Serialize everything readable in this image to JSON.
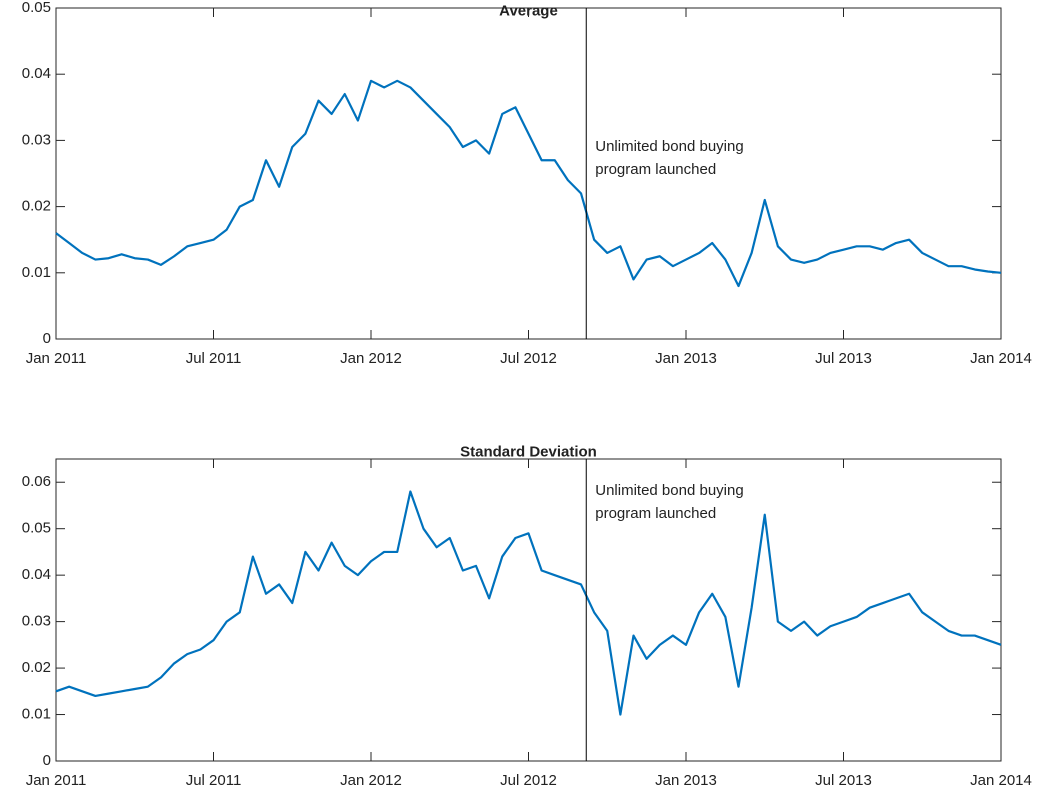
{
  "chart_data": [
    {
      "type": "line",
      "title": "Average",
      "color": "#0072bd",
      "x": [
        0,
        0.5,
        1,
        1.5,
        2,
        2.5,
        3,
        3.5,
        4,
        4.5,
        5,
        5.5,
        6,
        6.5,
        7,
        7.5,
        8,
        8.5,
        9,
        9.5,
        10,
        10.5,
        11,
        11.5,
        12,
        12.5,
        13,
        13.5,
        14,
        14.5,
        15,
        15.5,
        16,
        16.5,
        17,
        17.5,
        18,
        18.5,
        19,
        19.5,
        20,
        20.5,
        21,
        21.5,
        22,
        22.5,
        23,
        23.5,
        24,
        24.5,
        25,
        25.5,
        26,
        26.5,
        27,
        27.5,
        28,
        28.5,
        29,
        29.5,
        30,
        30.5,
        31,
        31.5,
        32,
        32.5,
        33,
        33.5,
        34,
        34.5,
        35,
        35.5,
        36
      ],
      "values": [
        0.016,
        0.0145,
        0.013,
        0.012,
        0.0122,
        0.0128,
        0.0122,
        0.012,
        0.0112,
        0.0125,
        0.014,
        0.0145,
        0.015,
        0.0165,
        0.02,
        0.021,
        0.027,
        0.023,
        0.029,
        0.031,
        0.036,
        0.034,
        0.037,
        0.033,
        0.039,
        0.038,
        0.039,
        0.038,
        0.036,
        0.034,
        0.032,
        0.029,
        0.03,
        0.028,
        0.034,
        0.035,
        0.031,
        0.027,
        0.027,
        0.024,
        0.022,
        0.015,
        0.013,
        0.014,
        0.009,
        0.012,
        0.0125,
        0.011,
        0.012,
        0.013,
        0.0145,
        0.012,
        0.008,
        0.013,
        0.021,
        0.014,
        0.012,
        0.0115,
        0.012,
        0.013,
        0.0135,
        0.014,
        0.014,
        0.0135,
        0.0145,
        0.015,
        0.013,
        0.012,
        0.011,
        0.011,
        0.0105,
        0.0102,
        0.01
      ],
      "xlim": [
        0,
        36
      ],
      "xticks": [
        {
          "value": 0,
          "label": "Jan 2011"
        },
        {
          "value": 6,
          "label": "Jul 2011"
        },
        {
          "value": 12,
          "label": "Jan 2012"
        },
        {
          "value": 18,
          "label": "Jul 2012"
        },
        {
          "value": 24,
          "label": "Jan 2013"
        },
        {
          "value": 30,
          "label": "Jul 2013"
        },
        {
          "value": 36,
          "label": "Jan 2014"
        }
      ],
      "ylim": [
        0,
        0.05
      ],
      "yticks": [
        0,
        0.01,
        0.02,
        0.03,
        0.04,
        0.05
      ],
      "vline": {
        "x": 20.2
      },
      "annotation": [
        "Unlimited bond buying",
        "program launched"
      ]
    },
    {
      "type": "line",
      "title": "Standard Deviation",
      "color": "#0072bd",
      "x": [
        0,
        0.5,
        1,
        1.5,
        2,
        2.5,
        3,
        3.5,
        4,
        4.5,
        5,
        5.5,
        6,
        6.5,
        7,
        7.5,
        8,
        8.5,
        9,
        9.5,
        10,
        10.5,
        11,
        11.5,
        12,
        12.5,
        13,
        13.5,
        14,
        14.5,
        15,
        15.5,
        16,
        16.5,
        17,
        17.5,
        18,
        18.5,
        19,
        19.5,
        20,
        20.5,
        21,
        21.5,
        22,
        22.5,
        23,
        23.5,
        24,
        24.5,
        25,
        25.5,
        26,
        26.5,
        27,
        27.5,
        28,
        28.5,
        29,
        29.5,
        30,
        30.5,
        31,
        31.5,
        32,
        32.5,
        33,
        33.5,
        34,
        34.5,
        35,
        35.5,
        36
      ],
      "values": [
        0.015,
        0.016,
        0.015,
        0.014,
        0.0145,
        0.015,
        0.0155,
        0.016,
        0.018,
        0.021,
        0.023,
        0.024,
        0.026,
        0.03,
        0.032,
        0.044,
        0.036,
        0.038,
        0.034,
        0.045,
        0.041,
        0.047,
        0.042,
        0.04,
        0.043,
        0.045,
        0.045,
        0.058,
        0.05,
        0.046,
        0.048,
        0.041,
        0.042,
        0.035,
        0.044,
        0.048,
        0.049,
        0.041,
        0.04,
        0.039,
        0.038,
        0.032,
        0.028,
        0.01,
        0.027,
        0.022,
        0.025,
        0.027,
        0.025,
        0.032,
        0.036,
        0.031,
        0.016,
        0.033,
        0.053,
        0.03,
        0.028,
        0.03,
        0.027,
        0.029,
        0.03,
        0.031,
        0.033,
        0.034,
        0.035,
        0.036,
        0.032,
        0.03,
        0.028,
        0.027,
        0.027,
        0.026,
        0.025
      ],
      "xlim": [
        0,
        36
      ],
      "xticks": [
        {
          "value": 0,
          "label": "Jan 2011"
        },
        {
          "value": 6,
          "label": "Jul 2011"
        },
        {
          "value": 12,
          "label": "Jan 2012"
        },
        {
          "value": 18,
          "label": "Jul 2012"
        },
        {
          "value": 24,
          "label": "Jan 2013"
        },
        {
          "value": 30,
          "label": "Jul 2013"
        },
        {
          "value": 36,
          "label": "Jan 2014"
        }
      ],
      "ylim": [
        0,
        0.065
      ],
      "yticks": [
        0,
        0.01,
        0.02,
        0.03,
        0.04,
        0.05,
        0.06
      ],
      "vline": {
        "x": 20.2
      },
      "annotation": [
        "Unlimited bond buying",
        "program launched"
      ]
    }
  ]
}
